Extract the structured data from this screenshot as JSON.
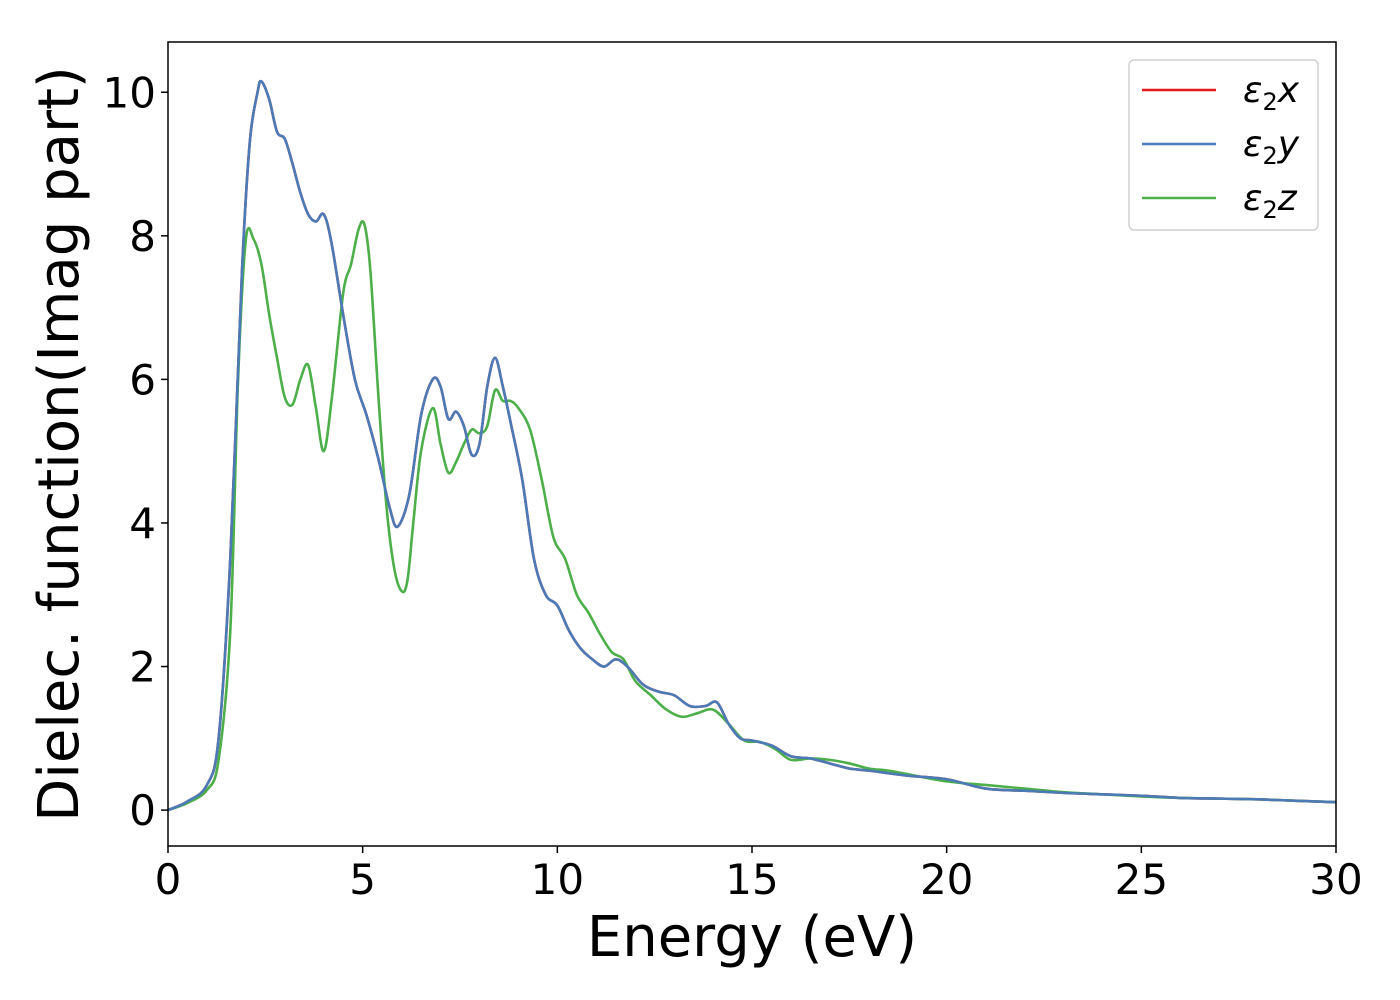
{
  "chart_data": {
    "type": "line",
    "xlabel": "Energy (eV)",
    "ylabel": "Dielec. function(Imag part)",
    "xlim": [
      0,
      30
    ],
    "ylim": [
      -0.5,
      10.7
    ],
    "xticks": [
      0,
      5,
      10,
      15,
      20,
      25,
      30
    ],
    "yticks": [
      0,
      2,
      4,
      6,
      8,
      10
    ],
    "grid": false,
    "legend_position": "top-right",
    "series": [
      {
        "name": "ε2x",
        "legend": {
          "base": "ε",
          "sub": "2",
          "suffix": "x"
        },
        "color": "#e41a1c",
        "x": [
          0,
          0.5,
          1,
          1.3,
          1.6,
          1.9,
          2.1,
          2.3,
          2.4,
          2.6,
          2.8,
          3.0,
          3.2,
          3.4,
          3.6,
          3.8,
          4.0,
          4.2,
          4.5,
          4.8,
          5.1,
          5.4,
          5.7,
          5.9,
          6.2,
          6.5,
          6.8,
          7.0,
          7.2,
          7.4,
          7.6,
          7.8,
          8.0,
          8.2,
          8.4,
          8.6,
          8.8,
          9.1,
          9.4,
          9.7,
          10.0,
          10.3,
          10.6,
          10.9,
          11.2,
          11.5,
          11.8,
          12.2,
          12.6,
          13.0,
          13.4,
          13.8,
          14.1,
          14.4,
          14.7,
          15.0,
          15.5,
          16.0,
          16.5,
          17.0,
          17.5,
          18.0,
          19.0,
          20.0,
          21.0,
          22.0,
          23.0,
          24.0,
          25.0,
          26.0,
          27.0,
          28.0,
          29.0,
          30.0
        ],
        "y": [
          0,
          0.12,
          0.35,
          1.0,
          3.5,
          7.5,
          9.3,
          10.0,
          10.15,
          9.9,
          9.45,
          9.35,
          9.0,
          8.6,
          8.3,
          8.2,
          8.3,
          7.9,
          6.9,
          6.0,
          5.5,
          4.9,
          4.2,
          3.95,
          4.4,
          5.5,
          6.0,
          5.9,
          5.45,
          5.55,
          5.35,
          4.95,
          5.1,
          5.9,
          6.3,
          5.9,
          5.4,
          4.6,
          3.5,
          3.0,
          2.85,
          2.5,
          2.25,
          2.1,
          2.0,
          2.1,
          2.0,
          1.75,
          1.65,
          1.6,
          1.45,
          1.45,
          1.5,
          1.2,
          1.0,
          0.97,
          0.9,
          0.75,
          0.72,
          0.65,
          0.58,
          0.55,
          0.48,
          0.43,
          0.3,
          0.27,
          0.24,
          0.22,
          0.2,
          0.17,
          0.16,
          0.15,
          0.13,
          0.11
        ]
      },
      {
        "name": "ε2y",
        "legend": {
          "base": "ε",
          "sub": "2",
          "suffix": "y"
        },
        "color": "#4a7bb7",
        "x": [
          0,
          0.5,
          1,
          1.3,
          1.6,
          1.9,
          2.1,
          2.3,
          2.4,
          2.6,
          2.8,
          3.0,
          3.2,
          3.4,
          3.6,
          3.8,
          4.0,
          4.2,
          4.5,
          4.8,
          5.1,
          5.4,
          5.7,
          5.9,
          6.2,
          6.5,
          6.8,
          7.0,
          7.2,
          7.4,
          7.6,
          7.8,
          8.0,
          8.2,
          8.4,
          8.6,
          8.8,
          9.1,
          9.4,
          9.7,
          10.0,
          10.3,
          10.6,
          10.9,
          11.2,
          11.5,
          11.8,
          12.2,
          12.6,
          13.0,
          13.4,
          13.8,
          14.1,
          14.4,
          14.7,
          15.0,
          15.5,
          16.0,
          16.5,
          17.0,
          17.5,
          18.0,
          19.0,
          20.0,
          21.0,
          22.0,
          23.0,
          24.0,
          25.0,
          26.0,
          27.0,
          28.0,
          29.0,
          30.0
        ],
        "y": [
          0,
          0.12,
          0.35,
          1.0,
          3.5,
          7.5,
          9.3,
          10.0,
          10.15,
          9.9,
          9.45,
          9.35,
          9.0,
          8.6,
          8.3,
          8.2,
          8.3,
          7.9,
          6.9,
          6.0,
          5.5,
          4.9,
          4.2,
          3.95,
          4.4,
          5.5,
          6.0,
          5.9,
          5.45,
          5.55,
          5.35,
          4.95,
          5.1,
          5.9,
          6.3,
          5.9,
          5.4,
          4.6,
          3.5,
          3.0,
          2.85,
          2.5,
          2.25,
          2.1,
          2.0,
          2.1,
          2.0,
          1.75,
          1.65,
          1.6,
          1.45,
          1.45,
          1.5,
          1.2,
          1.0,
          0.97,
          0.9,
          0.75,
          0.72,
          0.65,
          0.58,
          0.55,
          0.48,
          0.43,
          0.3,
          0.27,
          0.24,
          0.22,
          0.2,
          0.17,
          0.16,
          0.15,
          0.13,
          0.11
        ]
      },
      {
        "name": "ε2z",
        "legend": {
          "base": "ε",
          "sub": "2",
          "suffix": "z"
        },
        "color": "#4daf4a",
        "x": [
          0,
          0.5,
          1,
          1.3,
          1.6,
          1.8,
          2.0,
          2.2,
          2.4,
          2.6,
          2.8,
          3.0,
          3.2,
          3.4,
          3.6,
          3.8,
          4.0,
          4.2,
          4.5,
          4.7,
          4.9,
          5.05,
          5.2,
          5.4,
          5.6,
          5.8,
          6.0,
          6.15,
          6.3,
          6.5,
          6.8,
          7.0,
          7.2,
          7.4,
          7.6,
          7.8,
          8.0,
          8.2,
          8.4,
          8.6,
          8.8,
          9.0,
          9.3,
          9.6,
          9.9,
          10.2,
          10.5,
          10.8,
          11.1,
          11.4,
          11.7,
          12.0,
          12.4,
          12.8,
          13.2,
          13.6,
          14.0,
          14.4,
          14.8,
          15.2,
          15.6,
          16.0,
          16.5,
          17.0,
          17.5,
          18.0,
          18.5,
          19.0,
          20.0,
          21.0,
          22.0,
          23.0,
          24.0,
          25.0,
          26.0,
          27.0,
          28.0,
          29.0,
          30.0
        ],
        "y": [
          0,
          0.1,
          0.28,
          0.7,
          2.5,
          6.0,
          7.95,
          7.95,
          7.6,
          6.9,
          6.3,
          5.75,
          5.65,
          6.0,
          6.2,
          5.6,
          5.0,
          5.7,
          7.2,
          7.6,
          8.1,
          8.15,
          7.5,
          5.8,
          4.3,
          3.4,
          3.05,
          3.2,
          4.0,
          5.0,
          5.6,
          5.1,
          4.7,
          4.85,
          5.1,
          5.3,
          5.25,
          5.35,
          5.85,
          5.7,
          5.7,
          5.6,
          5.3,
          4.6,
          3.8,
          3.5,
          3.0,
          2.75,
          2.45,
          2.2,
          2.1,
          1.8,
          1.6,
          1.4,
          1.3,
          1.35,
          1.4,
          1.2,
          0.97,
          0.95,
          0.85,
          0.7,
          0.72,
          0.7,
          0.65,
          0.58,
          0.55,
          0.5,
          0.4,
          0.35,
          0.3,
          0.25,
          0.22,
          0.19,
          0.17,
          0.16,
          0.15,
          0.13,
          0.11
        ]
      }
    ]
  }
}
